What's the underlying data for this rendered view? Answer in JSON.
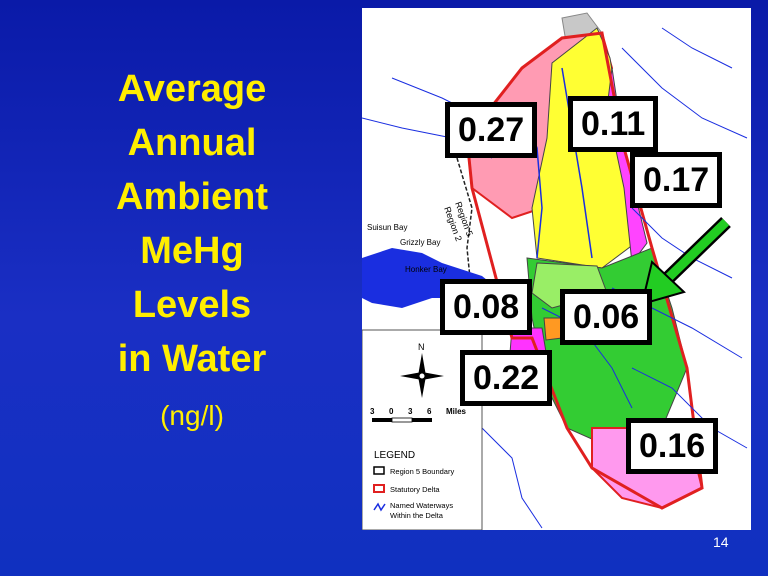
{
  "title_lines": [
    "Average",
    "Annual",
    "Ambient",
    "MeHg",
    "Levels",
    "in Water"
  ],
  "unit": "(ng/l)",
  "page_number": "14",
  "map": {
    "bay_labels": [
      "Suisun Bay",
      "Grizzly Bay",
      "Honker Bay"
    ],
    "region_labels": [
      "Region 5",
      "Region 2"
    ],
    "north_label": "N",
    "scale_numbers": [
      "3",
      "0",
      "3",
      "6"
    ],
    "scale_unit": "Miles",
    "legend": {
      "title": "LEGEND",
      "items": [
        "Region 5 Boundary",
        "Statutory Delta",
        "Named Waterways",
        "Within the Delta"
      ]
    }
  },
  "values": {
    "v1": "0.27",
    "v2": "0.11",
    "v3": "0.17",
    "v4": "0.08",
    "v5": "0.06",
    "v6": "0.22",
    "v7": "0.16"
  },
  "colors": {
    "background": "#1428b8",
    "title_text": "#ffee00",
    "arrow": "#22cc22"
  }
}
